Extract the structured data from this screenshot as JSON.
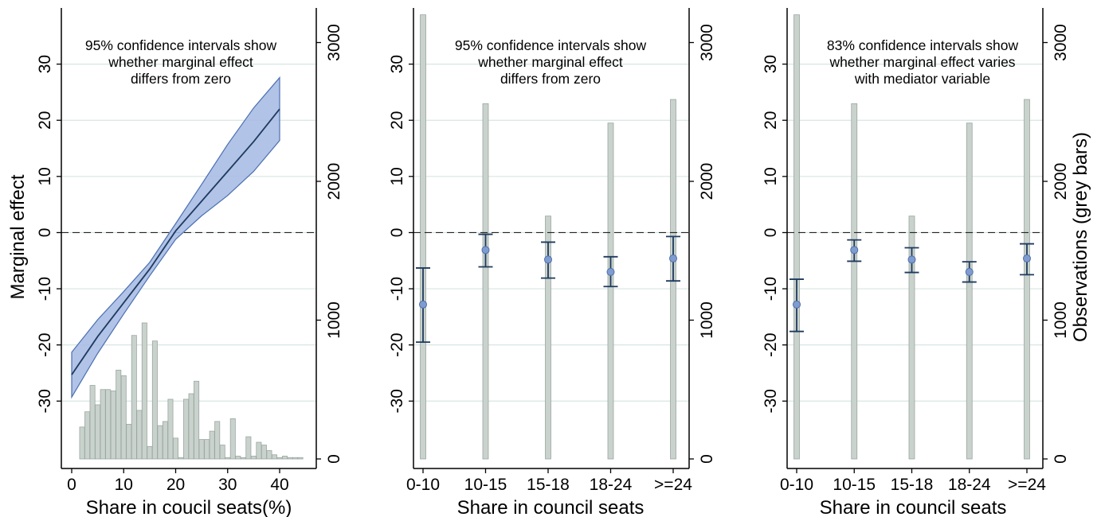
{
  "chart_data": [
    {
      "type": "line",
      "panel": "left",
      "annotation": [
        "95% confidence intervals show",
        "whether marginal effect",
        "differs from zero"
      ],
      "xlabel": "Share in coucil seats(%)",
      "ylabel": "Marginal effect",
      "y2label": "",
      "xlim": [
        0,
        45
      ],
      "ylim": [
        -40,
        40
      ],
      "y2lim": [
        0,
        3200
      ],
      "xticks": [
        "0",
        "10",
        "20",
        "30",
        "40"
      ],
      "yticks": [
        "-30",
        "-20",
        "-10",
        "0",
        "10",
        "20",
        "30"
      ],
      "y2ticks": [
        "0",
        "1000",
        "2000",
        "3000"
      ],
      "grid": true,
      "effect_line": {
        "x": [
          0,
          5,
          10,
          15,
          20,
          25,
          30,
          35,
          40
        ],
        "y": [
          -25.3,
          -18.5,
          -12.5,
          -6.5,
          0.3,
          5.6,
          10.9,
          16.2,
          22
        ]
      },
      "ci_upper": {
        "x": [
          0,
          5,
          10,
          15,
          20,
          25,
          30,
          35,
          40
        ],
        "y": [
          -21.3,
          -15.5,
          -10.5,
          -5.3,
          1.6,
          8.6,
          15.7,
          22.2,
          27.6
        ]
      },
      "ci_lower": {
        "x": [
          0,
          5,
          10,
          15,
          20,
          25,
          30,
          35,
          40
        ],
        "y": [
          -29.3,
          -21.5,
          -14.5,
          -7.7,
          -1.2,
          3.0,
          6.6,
          10.9,
          16.4
        ]
      },
      "histogram": {
        "x": [
          2,
          3,
          4,
          5,
          6,
          7,
          8,
          9,
          10,
          11,
          12,
          13,
          14,
          15,
          16,
          17,
          18,
          19,
          20,
          21,
          22,
          23,
          24,
          25,
          26,
          27,
          28,
          29,
          30,
          31,
          32,
          33,
          34,
          35,
          36,
          37,
          38,
          39,
          40,
          41,
          42,
          43,
          44
        ],
        "counts": [
          230,
          340,
          530,
          390,
          500,
          500,
          490,
          640,
          600,
          250,
          890,
          350,
          980,
          90,
          850,
          240,
          270,
          430,
          150,
          10,
          430,
          470,
          560,
          140,
          140,
          200,
          270,
          100,
          10,
          290,
          20,
          10,
          160,
          20,
          120,
          100,
          60,
          30,
          10,
          20,
          10,
          10,
          10
        ]
      }
    },
    {
      "type": "errorbar",
      "panel": "middle",
      "annotation": [
        "95% confidence intervals show",
        "whether marginal effect",
        "differs from zero"
      ],
      "xlabel": "Share in council seats",
      "ylim": [
        -40,
        40
      ],
      "y2lim": [
        0,
        3200
      ],
      "categories": [
        "0-10",
        "10-15",
        "15-18",
        "18-24",
        ">=24"
      ],
      "estimate": [
        -12.8,
        -3.1,
        -4.8,
        -7.0,
        -4.6
      ],
      "ci_low": [
        -19.5,
        -6.1,
        -8.1,
        -9.6,
        -8.6
      ],
      "ci_high": [
        -6.3,
        -0.3,
        -1.7,
        -4.3,
        -0.7
      ],
      "obs": [
        3200,
        2560,
        1750,
        2420,
        2590
      ],
      "yticks": [
        "-30",
        "-20",
        "-10",
        "0",
        "10",
        "20",
        "30"
      ],
      "y2ticks": [
        "0",
        "1000",
        "2000",
        "3000"
      ]
    },
    {
      "type": "errorbar",
      "panel": "right",
      "annotation": [
        "83% confidence intervals show",
        "whether marginal effect varies",
        "with mediator variable"
      ],
      "xlabel": "Share in council seats",
      "y2label": "Observations (grey bars)",
      "ylim": [
        -40,
        40
      ],
      "y2lim": [
        0,
        3200
      ],
      "categories": [
        "0-10",
        "10-15",
        "15-18",
        "18-24",
        ">=24"
      ],
      "estimate": [
        -12.8,
        -3.1,
        -4.8,
        -7.0,
        -4.6
      ],
      "ci_low": [
        -17.6,
        -5.1,
        -7.1,
        -8.8,
        -7.5
      ],
      "ci_high": [
        -8.3,
        -1.3,
        -2.7,
        -5.2,
        -2.0
      ],
      "obs": [
        3200,
        2560,
        1750,
        2420,
        2590
      ],
      "yticks": [
        "-30",
        "-20",
        "-10",
        "0",
        "10",
        "20",
        "30"
      ],
      "y2ticks": [
        "0",
        "1000",
        "2000",
        "3000"
      ]
    }
  ]
}
